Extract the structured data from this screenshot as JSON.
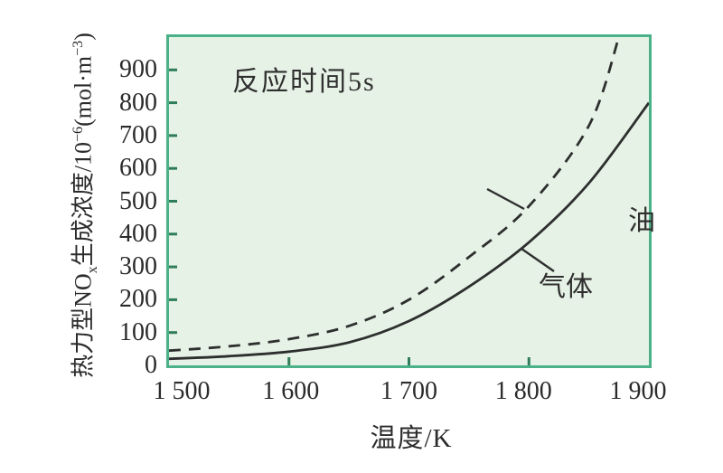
{
  "chart_data": {
    "type": "line",
    "title": "",
    "annotation": "反应时间5s",
    "xlabel": "温度/K",
    "ylabel": "热力型NOx生成浓度/10⁻⁶(mol·m⁻³)",
    "ylabel_parts": [
      {
        "t": "热力型NO"
      },
      {
        "t": "x",
        "script": "sub"
      },
      {
        "t": "生成浓度/10"
      },
      {
        "t": "−6",
        "script": "sup"
      },
      {
        "t": "(mol·m"
      },
      {
        "t": "−3",
        "script": "sup"
      },
      {
        "t": ")"
      }
    ],
    "xlim": [
      1500,
      1900
    ],
    "ylim": [
      0,
      1000
    ],
    "grid": false,
    "legend_position": "inline-labels",
    "x_tick_values": [
      1500,
      1600,
      1700,
      1800,
      1900
    ],
    "x_tick_labels": [
      "1 500",
      "1 600",
      "1 700",
      "1 800",
      "1 900"
    ],
    "y_tick_values": [
      0,
      100,
      200,
      300,
      400,
      500,
      600,
      700,
      800,
      900
    ],
    "y_tick_labels": [
      "0",
      "100",
      "200",
      "300",
      "400",
      "500",
      "600",
      "700",
      "800",
      "900"
    ],
    "series": [
      {
        "name": "油",
        "line_style": "dashed",
        "x": [
          1500,
          1550,
          1600,
          1650,
          1700,
          1750,
          1800,
          1850,
          1875
        ],
        "values": [
          45,
          58,
          80,
          120,
          200,
          330,
          485,
          730,
          1000
        ]
      },
      {
        "name": "气体",
        "line_style": "solid",
        "x": [
          1500,
          1550,
          1600,
          1650,
          1700,
          1750,
          1800,
          1850,
          1900
        ],
        "values": [
          20,
          28,
          42,
          70,
          135,
          240,
          375,
          555,
          800
        ]
      }
    ],
    "colors": {
      "plot_background": "#e6f2e6",
      "plot_border": "#4bb188",
      "tick_mark": "#2e7d58",
      "curve": "#2d2f2e",
      "text": "#2b2b2b"
    }
  }
}
